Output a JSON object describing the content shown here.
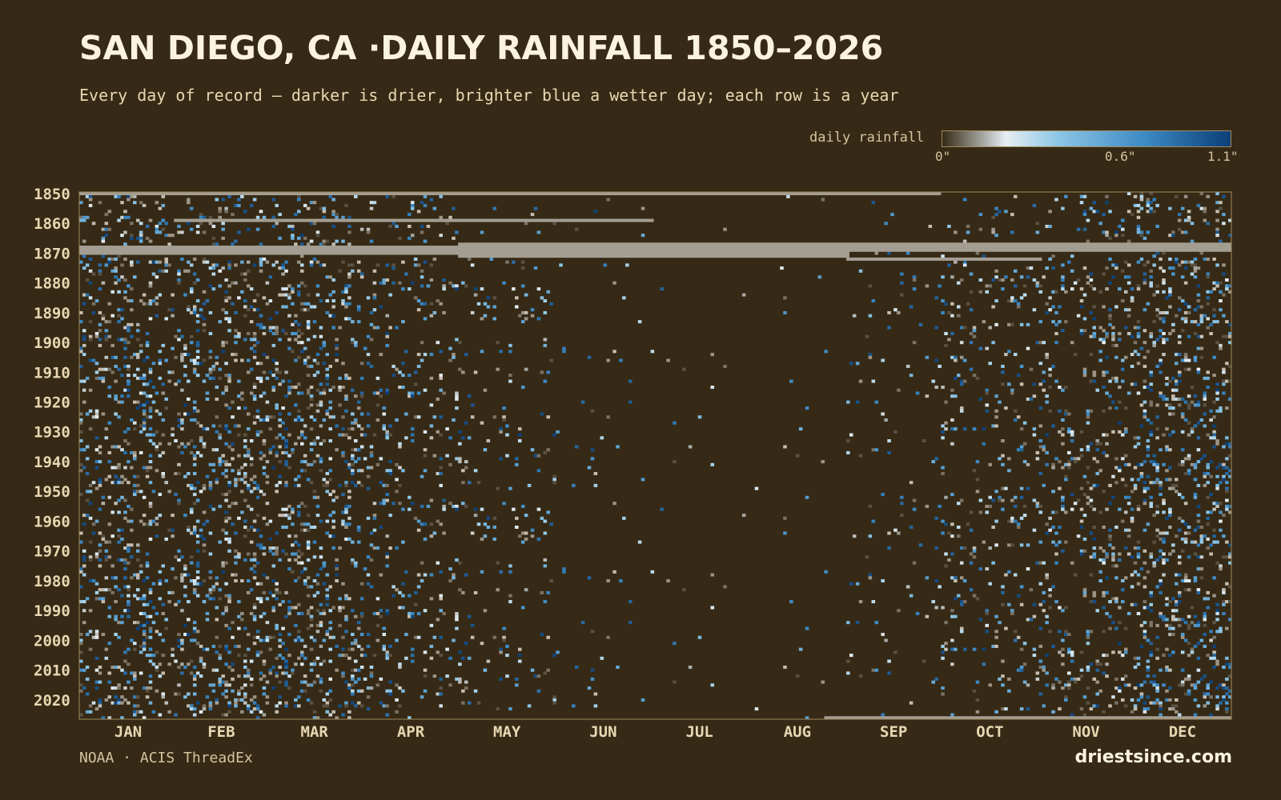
{
  "title": "SAN DIEGO, CA ·DAILY RAINFALL 1850–2026",
  "subtitle": "Every day of record — darker is drier, brighter blue a wetter day; each row is a year",
  "legend": {
    "label": "daily rainfall",
    "ticks": [
      {
        "label": "0\"",
        "value": 0
      },
      {
        "label": "0.6\"",
        "value": 0.6
      },
      {
        "label": "1.1\"",
        "value": 1.1
      }
    ],
    "colors": [
      "#362a16",
      "#e6eef2",
      "#8ec6e6",
      "#3d8ac4",
      "#0c3f78"
    ]
  },
  "source": "NOAA · ACIS ThreadEx",
  "brand": "driestsince.com",
  "colors": {
    "background": "#362a16",
    "missing": "#a49e92",
    "axis": "#a08a5c"
  },
  "chart_data": {
    "type": "heatmap",
    "title": "SAN DIEGO, CA ·DAILY RAINFALL 1850–2026",
    "x_axis": "day of year",
    "y_axis": "year",
    "year_range": [
      1850,
      2026
    ],
    "year_ticks": [
      1850,
      1860,
      1870,
      1880,
      1890,
      1900,
      1910,
      1920,
      1930,
      1940,
      1950,
      1960,
      1970,
      1980,
      1990,
      2000,
      2010,
      2020
    ],
    "months": [
      "JAN",
      "FEB",
      "MAR",
      "APR",
      "MAY",
      "JUN",
      "JUL",
      "AUG",
      "SEP",
      "OCT",
      "NOV",
      "DEC"
    ],
    "value_range": [
      0,
      1.1
    ],
    "unit": "inches",
    "monthly_wet_day_probability": [
      0.15,
      0.16,
      0.14,
      0.08,
      0.035,
      0.012,
      0.005,
      0.007,
      0.02,
      0.06,
      0.11,
      0.16
    ],
    "missing_data": [
      {
        "year": 1850,
        "from_day": 1,
        "to_day": 273
      },
      {
        "year": 1859,
        "from_day": 31,
        "to_day": 182
      },
      {
        "year": 1867,
        "from_day": 121,
        "to_day": 365
      },
      {
        "year": 1868,
        "from_day": 1,
        "to_day": 365
      },
      {
        "year": 1869,
        "from_day": 1,
        "to_day": 365
      },
      {
        "year": 1870,
        "from_day": 1,
        "to_day": 244
      },
      {
        "year": 1871,
        "from_day": 121,
        "to_day": 244
      },
      {
        "year": 1872,
        "from_day": 244,
        "to_day": 305
      },
      {
        "year": 2026,
        "from_day": 237,
        "to_day": 365
      }
    ]
  }
}
